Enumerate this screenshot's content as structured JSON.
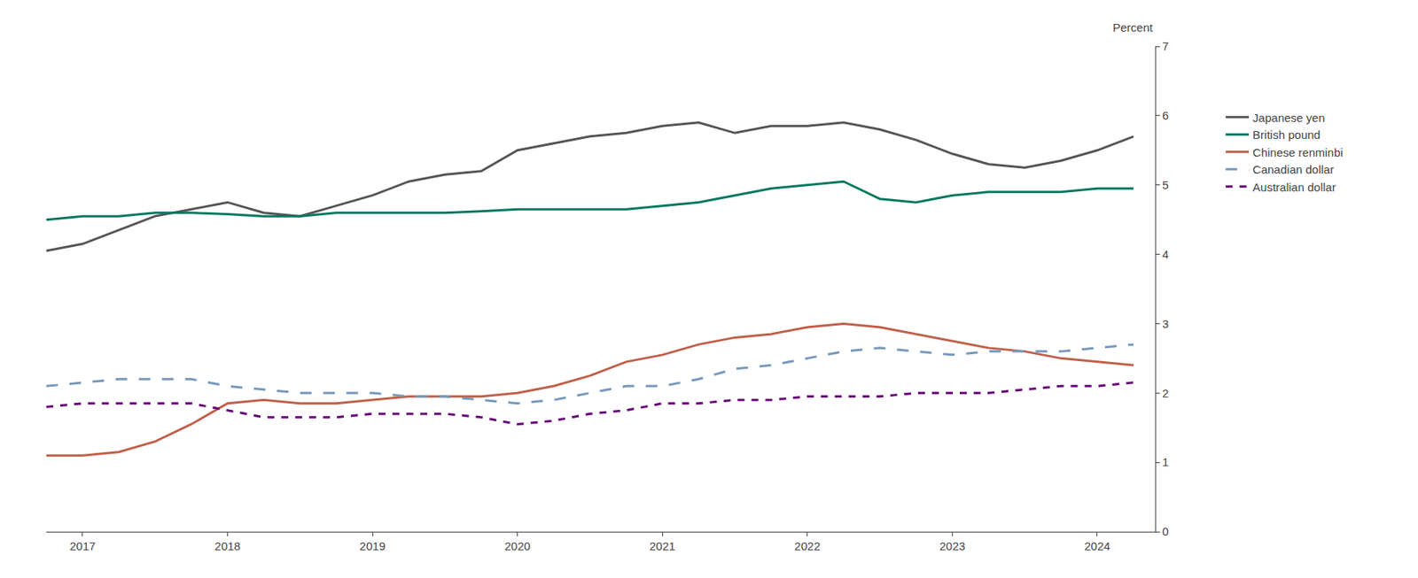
{
  "chart_data": {
    "type": "line",
    "ylabel": "Percent",
    "x": [
      2016.75,
      2017.0,
      2017.25,
      2017.5,
      2017.75,
      2018.0,
      2018.25,
      2018.5,
      2018.75,
      2019.0,
      2019.25,
      2019.5,
      2019.75,
      2020.0,
      2020.25,
      2020.5,
      2020.75,
      2021.0,
      2021.25,
      2021.5,
      2021.75,
      2022.0,
      2022.25,
      2022.5,
      2022.75,
      2023.0,
      2023.25,
      2023.5,
      2023.75,
      2024.0,
      2024.25
    ],
    "series": [
      {
        "name": "Japanese yen",
        "color": "#555555",
        "line_style": "solid",
        "values": [
          4.05,
          4.15,
          4.35,
          4.55,
          4.65,
          4.75,
          4.6,
          4.55,
          4.7,
          4.85,
          5.05,
          5.15,
          5.2,
          5.5,
          5.6,
          5.7,
          5.75,
          5.85,
          5.9,
          5.75,
          5.85,
          5.85,
          5.9,
          5.8,
          5.65,
          5.45,
          5.3,
          5.25,
          5.35,
          5.5,
          5.7
        ]
      },
      {
        "name": "British pound",
        "color": "#007860",
        "line_style": "solid",
        "values": [
          4.5,
          4.55,
          4.55,
          4.6,
          4.6,
          4.58,
          4.55,
          4.55,
          4.6,
          4.6,
          4.6,
          4.6,
          4.62,
          4.65,
          4.65,
          4.65,
          4.65,
          4.7,
          4.75,
          4.85,
          4.95,
          5.0,
          5.05,
          4.8,
          4.75,
          4.85,
          4.9,
          4.9,
          4.9,
          4.95,
          4.95
        ]
      },
      {
        "name": "Chinese renminbi",
        "color": "#c0604a",
        "line_style": "solid",
        "values": [
          1.1,
          1.1,
          1.15,
          1.3,
          1.55,
          1.85,
          1.9,
          1.85,
          1.85,
          1.9,
          1.95,
          1.95,
          1.95,
          2.0,
          2.1,
          2.25,
          2.45,
          2.55,
          2.7,
          2.8,
          2.85,
          2.95,
          3.0,
          2.95,
          2.85,
          2.75,
          2.65,
          2.6,
          2.5,
          2.45,
          2.4
        ]
      },
      {
        "name": "Canadian dollar",
        "color": "#7799bb",
        "line_style": "longdash",
        "values": [
          2.1,
          2.15,
          2.2,
          2.2,
          2.2,
          2.1,
          2.05,
          2.0,
          2.0,
          2.0,
          1.95,
          1.95,
          1.9,
          1.85,
          1.9,
          2.0,
          2.1,
          2.1,
          2.2,
          2.35,
          2.4,
          2.5,
          2.6,
          2.65,
          2.6,
          2.55,
          2.6,
          2.6,
          2.6,
          2.65,
          2.7
        ]
      },
      {
        "name": "Australian dollar",
        "color": "#660077",
        "line_style": "dash",
        "values": [
          1.8,
          1.85,
          1.85,
          1.85,
          1.85,
          1.75,
          1.65,
          1.65,
          1.65,
          1.7,
          1.7,
          1.7,
          1.65,
          1.55,
          1.6,
          1.7,
          1.75,
          1.85,
          1.85,
          1.9,
          1.9,
          1.95,
          1.95,
          1.95,
          2.0,
          2.0,
          2.0,
          2.05,
          2.1,
          2.1,
          2.15
        ]
      }
    ],
    "xlim": [
      2016.75,
      2024.4
    ],
    "xticks": [
      2017,
      2018,
      2019,
      2020,
      2021,
      2022,
      2023,
      2024
    ],
    "ylim": [
      0,
      7
    ],
    "yticks": [
      0,
      1,
      2,
      3,
      4,
      5,
      6,
      7
    ],
    "grid": false,
    "legend": "right"
  }
}
